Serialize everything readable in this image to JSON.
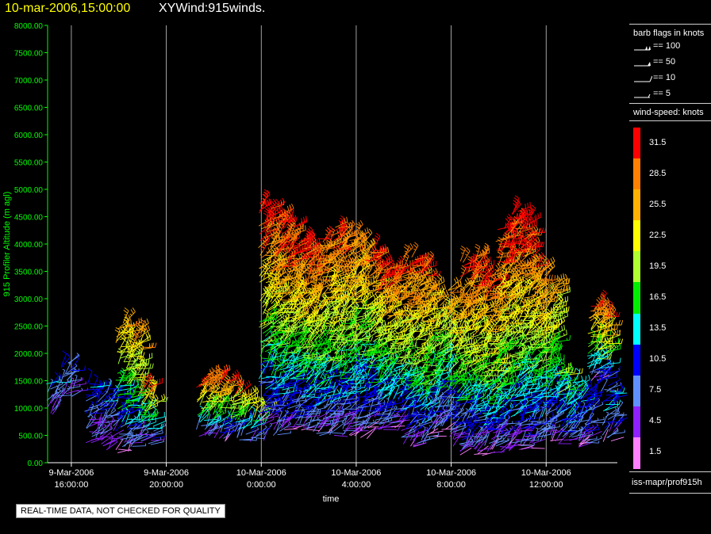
{
  "header": {
    "datetime": "10-mar-2006,15:00:00",
    "title": "XYWind:915winds."
  },
  "colors": {
    "background": "#000000",
    "axis": "#00ff00",
    "gridline": "#c8c8c8",
    "title_date": "#ffff00"
  },
  "qc_notice": "REAL-TIME DATA, NOT CHECKED FOR QUALITY",
  "legend": {
    "barb_title": "barb flags in knots",
    "barbs": [
      {
        "icon": "flag-barb-icon",
        "label": "== 100"
      },
      {
        "icon": "flag-barb-icon",
        "label": "== 50"
      },
      {
        "icon": "full-barb-icon",
        "label": "== 10"
      },
      {
        "icon": "half-barb-icon",
        "label": "== 5"
      }
    ],
    "speed_title": "wind-speed: knots",
    "speed_bins": [
      {
        "label": "31.5",
        "color": "#ff0000"
      },
      {
        "label": "28.5",
        "color": "#ff8000"
      },
      {
        "label": "25.5",
        "color": "#ffb000"
      },
      {
        "label": "22.5",
        "color": "#ffff00"
      },
      {
        "label": "19.5",
        "color": "#b0ff30"
      },
      {
        "label": "16.5",
        "color": "#00ee00"
      },
      {
        "label": "13.5",
        "color": "#00ffff"
      },
      {
        "label": "10.5",
        "color": "#0000ff"
      },
      {
        "label": "7.5",
        "color": "#6090ff"
      },
      {
        "label": "4.5",
        "color": "#9020ff"
      },
      {
        "label": "1.5",
        "color": "#ff80ff"
      }
    ],
    "source": "iss-mapr/prof915h"
  },
  "chart_data": {
    "type": "scatter",
    "mark": "wind barbs",
    "ylabel": "915 Profiler Altitude (m agl)",
    "xlabel": "time",
    "ylim": [
      0,
      8000
    ],
    "yticks": [
      "0.00",
      "500.00",
      "1000.00",
      "1500.00",
      "2000.00",
      "2500.00",
      "3000.00",
      "3500.00",
      "4000.00",
      "4500.00",
      "5000.00",
      "5500.00",
      "6000.00",
      "6500.00",
      "7000.00",
      "7500.00",
      "8000.00"
    ],
    "xlim": [
      "2006-03-09 15:00",
      "2006-03-10 15:00"
    ],
    "xticks": [
      {
        "date": "9-Mar-2006",
        "time": "16:00:00"
      },
      {
        "date": "9-Mar-2006",
        "time": "20:00:00"
      },
      {
        "date": "10-Mar-2006",
        "time": "0:00:00"
      },
      {
        "date": "10-Mar-2006",
        "time": "4:00:00"
      },
      {
        "date": "10-Mar-2006",
        "time": "8:00:00"
      },
      {
        "date": "10-Mar-2006",
        "time": "12:00:00"
      }
    ],
    "grid": "vertical",
    "speed_units": "knots",
    "profiles": [
      {
        "time": "2006-03-09 15:10",
        "bottom": 900,
        "top": 1450,
        "peak_speed": 11
      },
      {
        "time": "2006-03-09 15:50",
        "bottom": 1200,
        "top": 1850,
        "peak_speed": 12
      },
      {
        "time": "2006-03-09 16:50",
        "bottom": 350,
        "top": 1500,
        "peak_speed": 12
      },
      {
        "time": "2006-03-09 17:30",
        "bottom": 250,
        "top": 1400,
        "peak_speed": 11
      },
      {
        "time": "2006-03-09 18:10",
        "bottom": 200,
        "top": 2600,
        "peak_speed": 26
      },
      {
        "time": "2006-03-09 18:40",
        "bottom": 300,
        "top": 2400,
        "peak_speed": 27
      },
      {
        "time": "2006-03-09 19:10",
        "bottom": 350,
        "top": 1400,
        "peak_speed": 28
      },
      {
        "time": "2006-03-09 21:30",
        "bottom": 500,
        "top": 1500,
        "peak_speed": 31
      },
      {
        "time": "2006-03-09 22:00",
        "bottom": 450,
        "top": 1650,
        "peak_speed": 32
      },
      {
        "time": "2006-03-09 22:30",
        "bottom": 400,
        "top": 1550,
        "peak_speed": 31
      },
      {
        "time": "2006-03-09 23:10",
        "bottom": 400,
        "top": 1300,
        "peak_speed": 28
      },
      {
        "time": "2006-03-09 23:50",
        "bottom": 400,
        "top": 1000,
        "peak_speed": 24
      },
      {
        "time": "2006-03-10 00:10",
        "bottom": 700,
        "top": 4750,
        "peak_speed": 32
      },
      {
        "time": "2006-03-10 00:40",
        "bottom": 500,
        "top": 4600,
        "peak_speed": 32
      },
      {
        "time": "2006-03-10 01:10",
        "bottom": 600,
        "top": 4400,
        "peak_speed": 33
      },
      {
        "time": "2006-03-10 01:40",
        "bottom": 600,
        "top": 4100,
        "peak_speed": 32
      },
      {
        "time": "2006-03-10 02:10",
        "bottom": 550,
        "top": 4000,
        "peak_speed": 31
      },
      {
        "time": "2006-03-10 02:40",
        "bottom": 500,
        "top": 4100,
        "peak_speed": 30
      },
      {
        "time": "2006-03-10 03:10",
        "bottom": 500,
        "top": 4300,
        "peak_speed": 31
      },
      {
        "time": "2006-03-10 03:40",
        "bottom": 500,
        "top": 4200,
        "peak_speed": 30
      },
      {
        "time": "2006-03-10 04:10",
        "bottom": 450,
        "top": 4100,
        "peak_speed": 28
      },
      {
        "time": "2006-03-10 04:40",
        "bottom": 600,
        "top": 3900,
        "peak_speed": 30
      },
      {
        "time": "2006-03-10 05:10",
        "bottom": 600,
        "top": 3600,
        "peak_speed": 31
      },
      {
        "time": "2006-03-10 05:40",
        "bottom": 600,
        "top": 3600,
        "peak_speed": 30
      },
      {
        "time": "2006-03-10 06:10",
        "bottom": 300,
        "top": 3800,
        "peak_speed": 31
      },
      {
        "time": "2006-03-10 06:40",
        "bottom": 300,
        "top": 3600,
        "peak_speed": 30
      },
      {
        "time": "2006-03-10 07:10",
        "bottom": 500,
        "top": 3200,
        "peak_speed": 26
      },
      {
        "time": "2006-03-10 07:40",
        "bottom": 600,
        "top": 2900,
        "peak_speed": 24
      },
      {
        "time": "2006-03-10 08:10",
        "bottom": 300,
        "top": 3200,
        "peak_speed": 28
      },
      {
        "time": "2006-03-10 08:40",
        "bottom": 150,
        "top": 3700,
        "peak_speed": 31
      },
      {
        "time": "2006-03-10 09:10",
        "bottom": 150,
        "top": 3800,
        "peak_speed": 32
      },
      {
        "time": "2006-03-10 09:40",
        "bottom": 200,
        "top": 3400,
        "peak_speed": 31
      },
      {
        "time": "2006-03-10 10:10",
        "bottom": 200,
        "top": 4300,
        "peak_speed": 32
      },
      {
        "time": "2006-03-10 10:40",
        "bottom": 250,
        "top": 4600,
        "peak_speed": 33
      },
      {
        "time": "2006-03-10 11:10",
        "bottom": 250,
        "top": 4450,
        "peak_speed": 32
      },
      {
        "time": "2006-03-10 11:40",
        "bottom": 350,
        "top": 3600,
        "peak_speed": 30
      },
      {
        "time": "2006-03-10 12:10",
        "bottom": 400,
        "top": 3300,
        "peak_speed": 25
      },
      {
        "time": "2006-03-10 12:40",
        "bottom": 350,
        "top": 1700,
        "peak_speed": 20
      },
      {
        "time": "2006-03-10 13:10",
        "bottom": 300,
        "top": 1500,
        "peak_speed": 15
      },
      {
        "time": "2006-03-10 13:40",
        "bottom": 300,
        "top": 1300,
        "peak_speed": 13
      },
      {
        "time": "2006-03-10 14:00",
        "bottom": 1500,
        "top": 2900,
        "peak_speed": 31
      },
      {
        "time": "2006-03-10 14:20",
        "bottom": 1300,
        "top": 2800,
        "peak_speed": 30
      },
      {
        "time": "2006-03-10 14:40",
        "bottom": 400,
        "top": 1300,
        "peak_speed": 14
      }
    ]
  }
}
